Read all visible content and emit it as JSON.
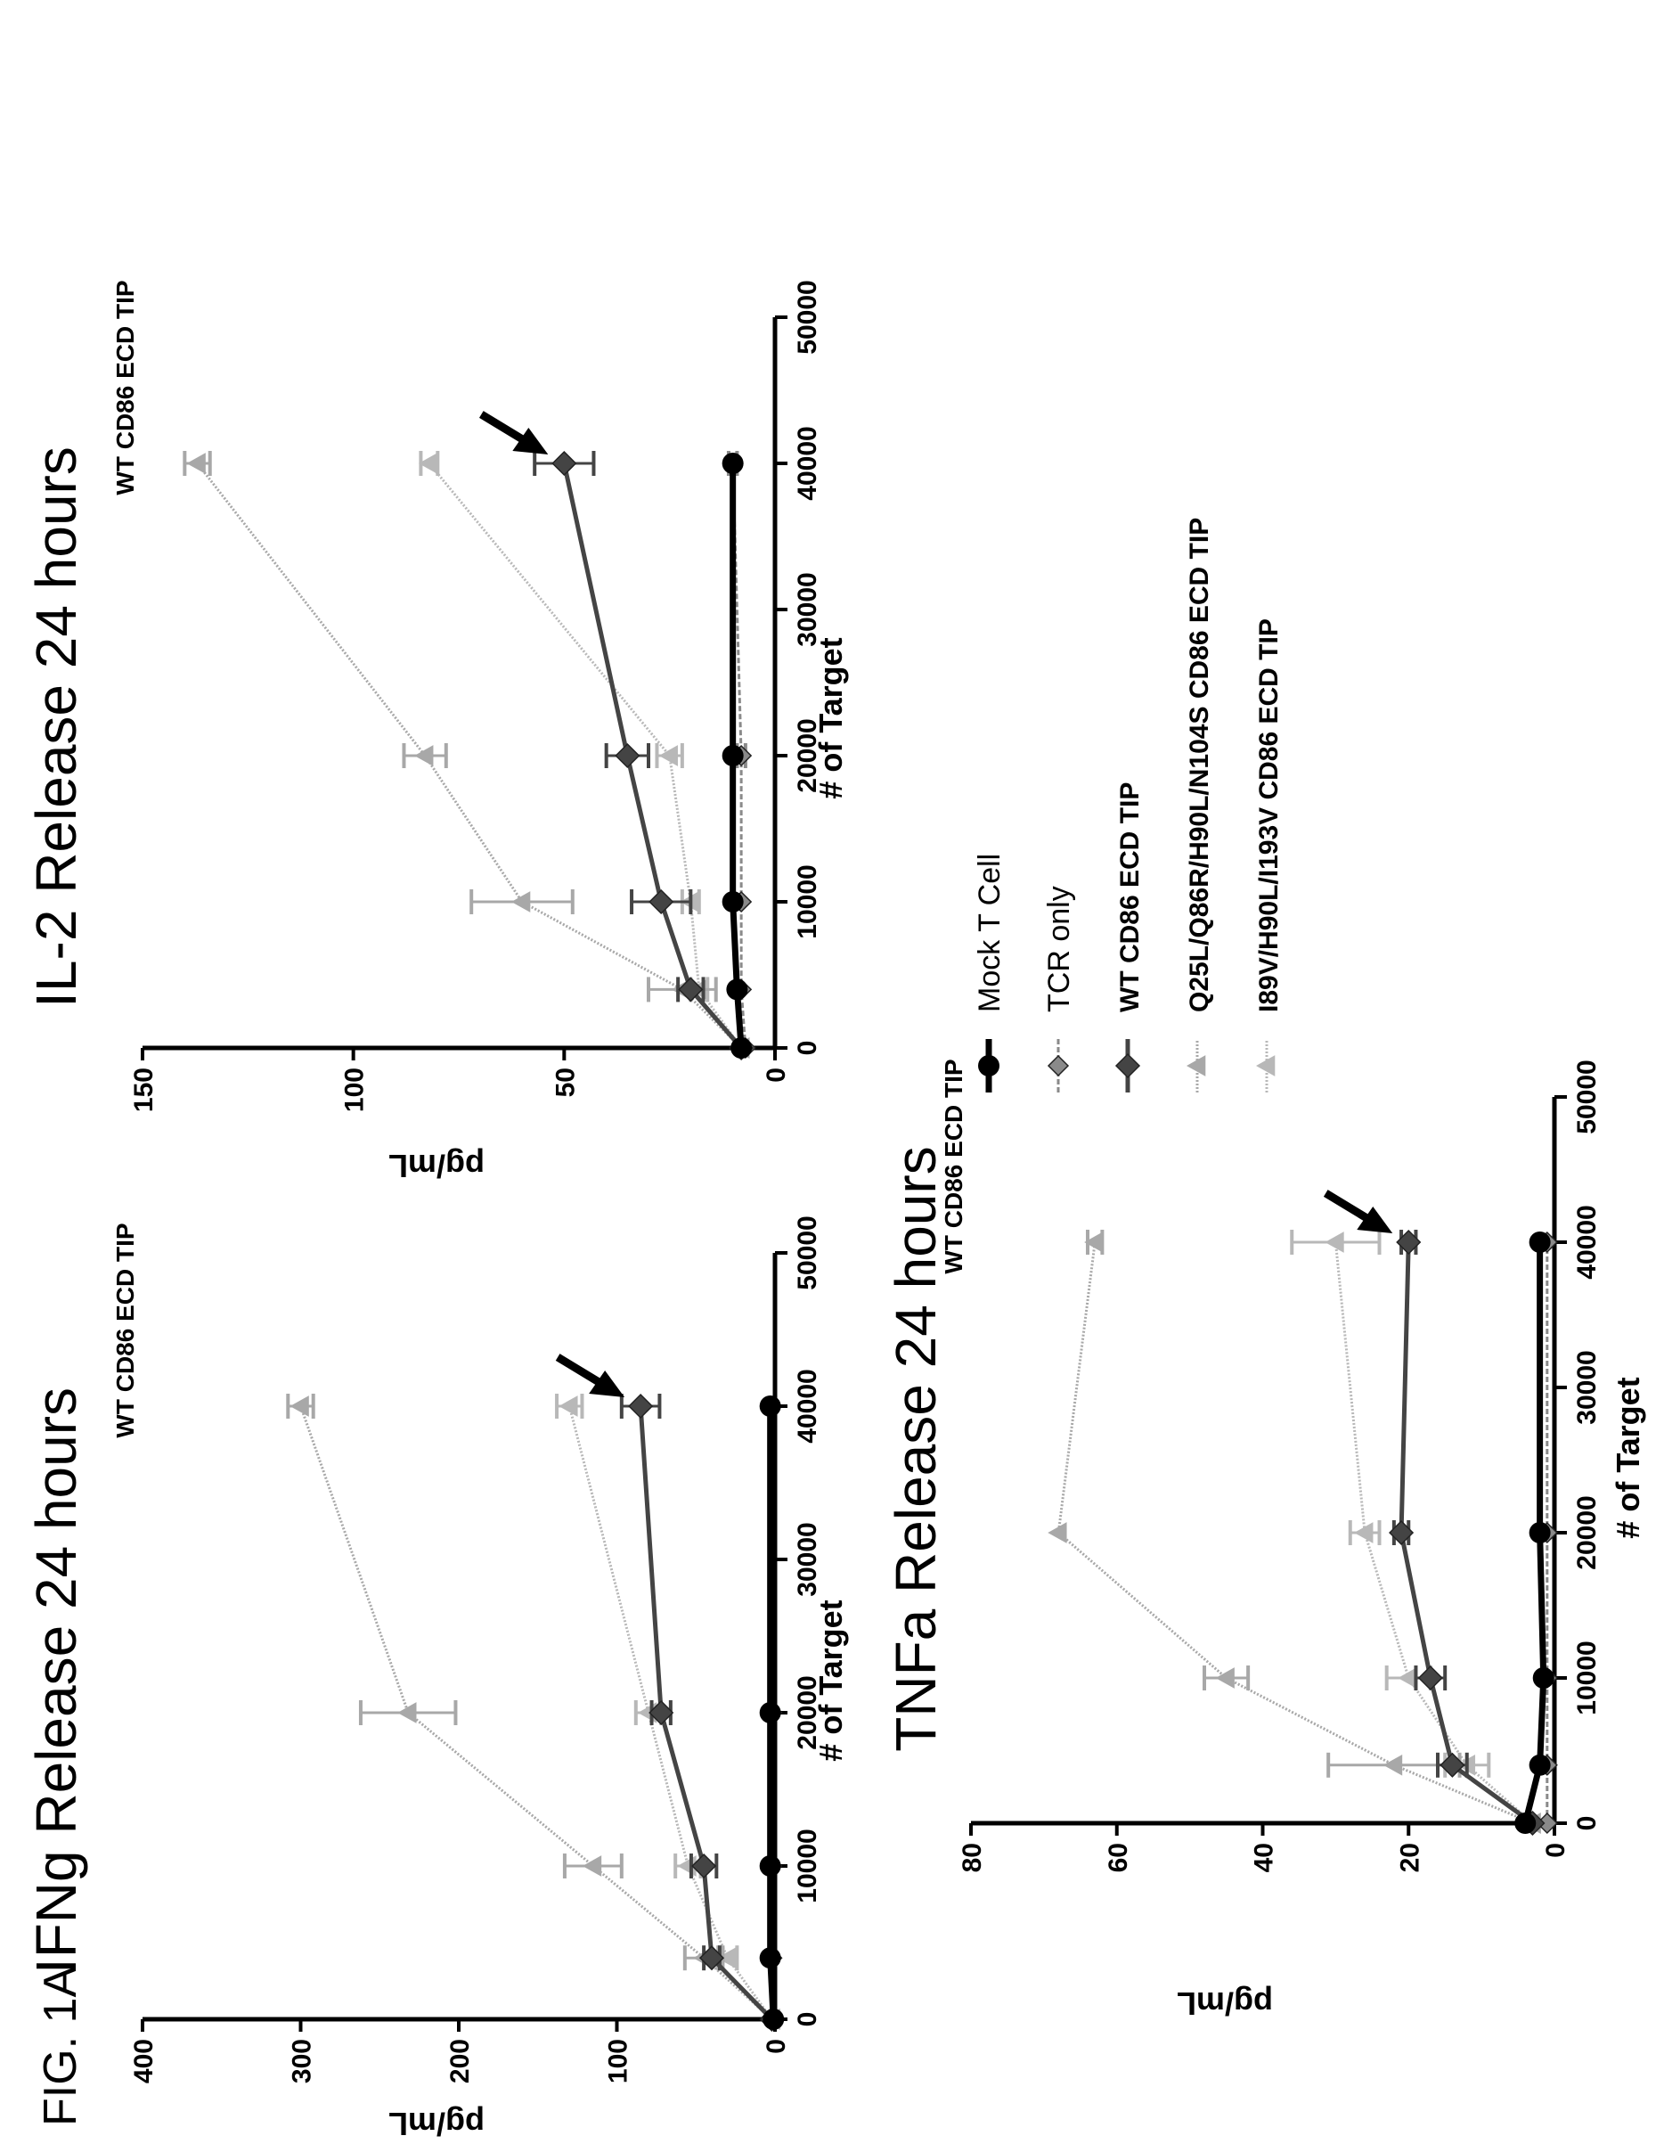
{
  "figure_label": "FIG. 1A",
  "colors": {
    "mock": "#000000",
    "tcr": "#8a8a8a",
    "wt": "#444444",
    "q25l": "#a8a8a8",
    "i89v": "#b8b8b8"
  },
  "legend": {
    "items": [
      {
        "label": "Mock T Cell",
        "style": "plain",
        "series_key": "mock"
      },
      {
        "label": "TCR only",
        "style": "plain",
        "series_key": "tcr"
      },
      {
        "label": "WT CD86 ECD TIP",
        "style": "bold",
        "series_key": "wt"
      },
      {
        "label": "Q25L/Q86R/H90L/N104S CD86 ECD TIP",
        "style": "bold",
        "series_key": "q25l"
      },
      {
        "label": "I89V/H90L/I193V  CD86 ECD TIP",
        "style": "bold",
        "series_key": "i89v"
      }
    ]
  },
  "chart_data": [
    {
      "id": "ifng",
      "type": "line",
      "title": "IFNg Release 24 hours",
      "xlabel": "# of Target",
      "ylabel": "pg/mL",
      "xlim": [
        0,
        50000
      ],
      "ylim": [
        0,
        400
      ],
      "xticks": [
        "0",
        "10000",
        "20000",
        "30000",
        "40000",
        "50000"
      ],
      "yticks": [
        "0",
        "100",
        "200",
        "300",
        "400"
      ],
      "annotation": "WT CD86 ECD TIP",
      "annotation_target": {
        "series": "wt",
        "x": 40000
      },
      "x": [
        0,
        4000,
        10000,
        20000,
        40000
      ],
      "series": [
        {
          "key": "mock",
          "name": "Mock T Cell",
          "values": [
            1,
            3,
            3,
            3,
            3
          ],
          "errors": [
            0,
            0,
            0,
            0,
            0
          ]
        },
        {
          "key": "tcr",
          "name": "TCR only",
          "values": [
            1,
            2,
            2,
            2,
            3
          ],
          "errors": [
            0,
            0,
            0,
            0,
            0
          ]
        },
        {
          "key": "wt",
          "name": "WT CD86 ECD TIP",
          "values": [
            2,
            40,
            45,
            72,
            85
          ],
          "errors": [
            0,
            5,
            8,
            6,
            12
          ]
        },
        {
          "key": "q25l",
          "name": "Q25L/Q86R/H90L/N104S CD86 ECD TIP",
          "values": [
            2,
            45,
            115,
            232,
            300
          ],
          "errors": [
            0,
            12,
            18,
            30,
            8
          ]
        },
        {
          "key": "i89v",
          "name": "I89V/H90L/I193V  CD86 ECD TIP",
          "values": [
            2,
            30,
            55,
            80,
            130
          ],
          "errors": [
            0,
            6,
            8,
            8,
            8
          ]
        }
      ]
    },
    {
      "id": "il2",
      "type": "line",
      "title": "IL-2 Release 24 hours",
      "xlabel": "# of Target",
      "ylabel": "pg/mL",
      "xlim": [
        0,
        50000
      ],
      "ylim": [
        0,
        150
      ],
      "xticks": [
        "0",
        "10000",
        "20000",
        "30000",
        "40000",
        "50000"
      ],
      "yticks": [
        "0",
        "50",
        "100",
        "150"
      ],
      "annotation": "WT CD86 ECD TIP",
      "annotation_target": {
        "series": "wt",
        "x": 40000
      },
      "x": [
        0,
        4000,
        10000,
        20000,
        40000
      ],
      "series": [
        {
          "key": "mock",
          "name": "Mock T Cell",
          "values": [
            8,
            9,
            10,
            10,
            10
          ],
          "errors": [
            0,
            0,
            0,
            0,
            0
          ]
        },
        {
          "key": "tcr",
          "name": "TCR only",
          "values": [
            7,
            8,
            8,
            8,
            10
          ],
          "errors": [
            0,
            0,
            0,
            1,
            1
          ]
        },
        {
          "key": "wt",
          "name": "WT CD86 ECD TIP",
          "values": [
            8,
            20,
            27,
            35,
            50
          ],
          "errors": [
            0,
            3,
            7,
            5,
            7
          ]
        },
        {
          "key": "q25l",
          "name": "Q25L/Q86R/H90L/N104S CD86 ECD TIP",
          "values": [
            8,
            22,
            60,
            83,
            137
          ],
          "errors": [
            0,
            8,
            12,
            5,
            3
          ]
        },
        {
          "key": "i89v",
          "name": "I89V/H90L/I193V  CD86 ECD TIP",
          "values": [
            8,
            18,
            20,
            25,
            82
          ],
          "errors": [
            0,
            2,
            2,
            3,
            2
          ]
        }
      ]
    },
    {
      "id": "tnfa",
      "type": "line",
      "title": "TNFa Release 24 hours",
      "xlabel": "# of Target",
      "ylabel": "pg/mL",
      "xlim": [
        0,
        50000
      ],
      "ylim": [
        0,
        80
      ],
      "xticks": [
        "0",
        "10000",
        "20000",
        "30000",
        "40000",
        "50000"
      ],
      "yticks": [
        "0",
        "20",
        "40",
        "60",
        "80"
      ],
      "annotation": "WT CD86 ECD TIP",
      "annotation_target": {
        "series": "wt",
        "x": 40000
      },
      "x": [
        0,
        4000,
        10000,
        20000,
        40000
      ],
      "series": [
        {
          "key": "mock",
          "name": "Mock T Cell",
          "values": [
            4,
            2,
            1.5,
            2,
            2
          ],
          "errors": [
            0,
            0,
            0,
            0,
            0
          ]
        },
        {
          "key": "tcr",
          "name": "TCR only",
          "values": [
            1,
            1,
            1,
            1,
            1
          ],
          "errors": [
            0,
            0,
            0,
            0,
            0
          ]
        },
        {
          "key": "wt",
          "name": "WT CD86 ECD TIP",
          "values": [
            3,
            14,
            17,
            21,
            20
          ],
          "errors": [
            0,
            2,
            2,
            1,
            1
          ]
        },
        {
          "key": "q25l",
          "name": "Q25L/Q86R/H90L/N104S CD86 ECD TIP",
          "values": [
            3,
            22,
            45,
            68,
            63
          ],
          "errors": [
            0,
            9,
            3,
            0,
            1
          ]
        },
        {
          "key": "i89v",
          "name": "I89V/H90L/I193V  CD86 ECD TIP",
          "values": [
            3,
            12,
            20,
            26,
            30
          ],
          "errors": [
            0,
            3,
            3,
            2,
            6
          ]
        }
      ]
    }
  ]
}
